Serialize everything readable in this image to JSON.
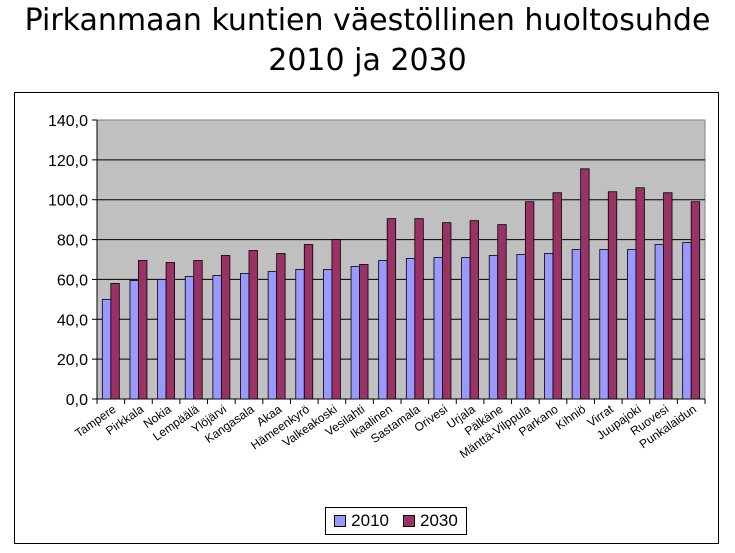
{
  "chart_data": {
    "type": "bar",
    "title_line1": "Pirkanmaan kuntien väestöllinen huoltosuhde",
    "title_line2": "2010 ja 2030",
    "categories": [
      "Tampere",
      "Pirkkala",
      "Nokia",
      "Lempäälä",
      "Ylöjärvi",
      "Kangasala",
      "Akaa",
      "Hämeenkyrö",
      "Valkeakoski",
      "Vesilahti",
      "Ikaalinen",
      "Sastamala",
      "Orivesi",
      "Urjala",
      "Pälkäne",
      "Mänttä-Vilppula",
      "Parkano",
      "Kihniö",
      "Virrat",
      "Juupajoki",
      "Ruovesi",
      "Punkalaidun"
    ],
    "series": [
      {
        "name": "2010",
        "color": "#9999ff",
        "values": [
          50,
          59.5,
          60,
          61.5,
          62,
          63,
          64,
          65,
          65,
          66.5,
          69.5,
          70.5,
          71,
          71,
          72,
          72.5,
          73,
          75,
          75,
          75,
          77.5,
          78.5
        ]
      },
      {
        "name": "2030",
        "color": "#993366",
        "values": [
          58,
          69.5,
          68.5,
          69.5,
          72,
          74.5,
          73,
          77.5,
          80,
          67.5,
          90.5,
          90.5,
          88.5,
          89.5,
          87.5,
          99,
          103.5,
          115.5,
          104,
          106,
          103.5,
          99
        ]
      }
    ],
    "ylim": [
      0,
      140
    ],
    "yticks": [
      "0,0",
      "20,0",
      "40,0",
      "60,0",
      "80,0",
      "100,0",
      "120,0",
      "140,0"
    ],
    "plot_background": "#c0c0c0",
    "grid": true,
    "legend_position": "bottom"
  }
}
